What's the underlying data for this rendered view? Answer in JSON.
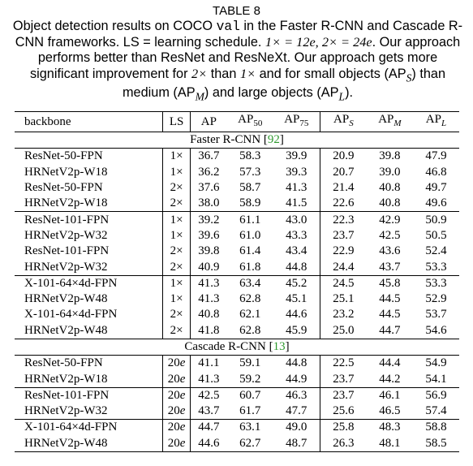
{
  "title": "TABLE 8",
  "caption": [
    "Object detection results on COCO ",
    "val",
    " in the Faster R-CNN and Cascade R-CNN frameworks. LS = learning schedule. ",
    "1× = 12e, 2× = 24e",
    ". Our approach performs better than ResNet and ResNeXt. Our approach gets more significant improvement for ",
    "2×",
    " than ",
    "1×",
    " and for small objects (AP",
    "S",
    ") than medium (AP",
    "M",
    ") and large objects (AP",
    "L",
    ")."
  ],
  "table": {
    "header": [
      [
        "backbone",
        ""
      ],
      [
        "LS",
        ""
      ],
      [
        "AP",
        ""
      ],
      [
        "AP",
        "50"
      ],
      [
        "AP",
        "75"
      ],
      [
        "AP",
        "S"
      ],
      [
        "AP",
        "M"
      ],
      [
        "AP",
        "L"
      ]
    ],
    "sections": [
      {
        "name": "Faster R-CNN",
        "ref": "92",
        "groups": [
          [
            {
              "backbone": "ResNet-50-FPN",
              "ls": "1×",
              "values": [
                "36.7",
                "58.3",
                "39.9",
                "20.9",
                "39.8",
                "47.9"
              ]
            },
            {
              "backbone": "HRNetV2p-W18",
              "ls": "1×",
              "values": [
                "36.2",
                "57.3",
                "39.3",
                "20.7",
                "39.0",
                "46.8"
              ]
            },
            {
              "backbone": "ResNet-50-FPN",
              "ls": "2×",
              "values": [
                "37.6",
                "58.7",
                "41.3",
                "21.4",
                "40.8",
                "49.7"
              ]
            },
            {
              "backbone": "HRNetV2p-W18",
              "ls": "2×",
              "values": [
                "38.0",
                "58.9",
                "41.5",
                "22.6",
                "40.8",
                "49.6"
              ]
            }
          ],
          [
            {
              "backbone": "ResNet-101-FPN",
              "ls": "1×",
              "values": [
                "39.2",
                "61.1",
                "43.0",
                "22.3",
                "42.9",
                "50.9"
              ]
            },
            {
              "backbone": "HRNetV2p-W32",
              "ls": "1×",
              "values": [
                "39.6",
                "61.0",
                "43.3",
                "23.7",
                "42.5",
                "50.5"
              ]
            },
            {
              "backbone": "ResNet-101-FPN",
              "ls": "2×",
              "values": [
                "39.8",
                "61.4",
                "43.4",
                "22.9",
                "43.6",
                "52.4"
              ]
            },
            {
              "backbone": "HRNetV2p-W32",
              "ls": "2×",
              "values": [
                "40.9",
                "61.8",
                "44.8",
                "24.4",
                "43.7",
                "53.3"
              ]
            }
          ],
          [
            {
              "backbone": "X-101-64×4d-FPN",
              "ls": "1×",
              "values": [
                "41.3",
                "63.4",
                "45.2",
                "24.5",
                "45.8",
                "53.3"
              ]
            },
            {
              "backbone": "HRNetV2p-W48",
              "ls": "1×",
              "values": [
                "41.3",
                "62.8",
                "45.1",
                "25.1",
                "44.5",
                "52.9"
              ]
            },
            {
              "backbone": "X-101-64×4d-FPN",
              "ls": "2×",
              "values": [
                "40.8",
                "62.1",
                "44.6",
                "23.2",
                "44.5",
                "53.7"
              ]
            },
            {
              "backbone": "HRNetV2p-W48",
              "ls": "2×",
              "values": [
                "41.8",
                "62.8",
                "45.9",
                "25.0",
                "44.7",
                "54.6"
              ]
            }
          ]
        ]
      },
      {
        "name": "Cascade R-CNN",
        "ref": "13",
        "groups": [
          [
            {
              "backbone": "ResNet-50-FPN",
              "ls": "20e",
              "values": [
                "41.1",
                "59.1",
                "44.8",
                "22.5",
                "44.4",
                "54.9"
              ]
            },
            {
              "backbone": "HRNetV2p-W18",
              "ls": "20e",
              "values": [
                "41.3",
                "59.2",
                "44.9",
                "23.7",
                "44.2",
                "54.1"
              ]
            }
          ],
          [
            {
              "backbone": "ResNet-101-FPN",
              "ls": "20e",
              "values": [
                "42.5",
                "60.7",
                "46.3",
                "23.7",
                "46.1",
                "56.9"
              ]
            },
            {
              "backbone": "HRNetV2p-W32",
              "ls": "20e",
              "values": [
                "43.7",
                "61.7",
                "47.7",
                "25.6",
                "46.5",
                "57.4"
              ]
            }
          ],
          [
            {
              "backbone": "X-101-64×4d-FPN",
              "ls": "20e",
              "values": [
                "44.7",
                "63.1",
                "49.0",
                "25.8",
                "48.3",
                "58.8"
              ]
            },
            {
              "backbone": "HRNetV2p-W48",
              "ls": "20e",
              "values": [
                "44.6",
                "62.7",
                "48.7",
                "26.3",
                "48.1",
                "58.5"
              ]
            }
          ]
        ]
      }
    ]
  }
}
